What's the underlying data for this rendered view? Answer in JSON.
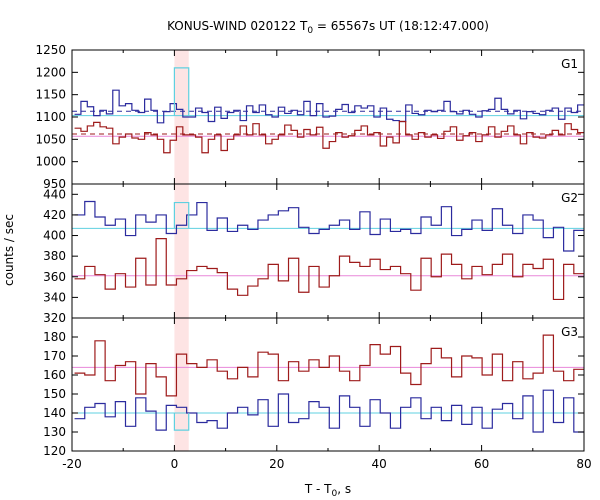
{
  "chart_data": {
    "type": "line",
    "title_main": "KONUS-WIND 020122 T",
    "title_sub": "0",
    "title_rest": " = 65567s UT (18:12:47.000)",
    "xlabel_main": "T - T",
    "xlabel_sub": "0",
    "xlabel_rest": ", s",
    "ylabel": "counts / sec",
    "xlim": [
      -20,
      80
    ],
    "xticks": [
      "-20",
      "0",
      "20",
      "40",
      "60",
      "80"
    ],
    "highlight_band": [
      0,
      2.8
    ],
    "colors": {
      "blue": "#2b2b9e",
      "red": "#9e1b1b",
      "cyan": "#5fd0e0",
      "pink": "#e887d9",
      "band": "#fde4e4"
    },
    "panels": [
      {
        "label": "G1",
        "ylim": [
          950,
          1250
        ],
        "yticks": [
          "950",
          "1000",
          "1050",
          "1100",
          "1150",
          "1200",
          "1250"
        ],
        "series": [
          {
            "color": "blue",
            "values": [
              1106,
              1135,
              1123,
              1103,
              1115,
              1107,
              1160,
              1125,
              1130,
              1115,
              1110,
              1140,
              1115,
              1087,
              1112,
              1130,
              1117,
              1100,
              1100,
              1120,
              1110,
              1090,
              1122,
              1097,
              1110,
              1115,
              1092,
              1125,
              1110,
              1127,
              1105,
              1100,
              1122,
              1108,
              1115,
              1105,
              1135,
              1103,
              1130,
              1100,
              1102,
              1117,
              1128,
              1110,
              1125,
              1120,
              1125,
              1100,
              1120,
              1095,
              1092,
              1090,
              1127,
              1108,
              1105,
              1115,
              1112,
              1115,
              1135,
              1112,
              1107,
              1115,
              1106,
              1100,
              1114,
              1117,
              1142,
              1117,
              1107,
              1115,
              1096,
              1112,
              1108,
              1105,
              1115,
              1120,
              1095,
              1120,
              1110,
              1127
            ]
          },
          {
            "color": "red",
            "values": [
              1075,
              1068,
              1080,
              1088,
              1078,
              1075,
              1040,
              1055,
              1062,
              1053,
              1050,
              1065,
              1060,
              1050,
              1020,
              1048,
              1078,
              1060,
              1060,
              1055,
              1020,
              1050,
              1060,
              1025,
              1050,
              1060,
              1080,
              1060,
              1085,
              1060,
              1040,
              1050,
              1060,
              1082,
              1070,
              1055,
              1072,
              1060,
              1077,
              1030,
              1045,
              1065,
              1055,
              1058,
              1070,
              1080,
              1060,
              1065,
              1035,
              1055,
              1042,
              1090,
              1060,
              1050,
              1065,
              1055,
              1060,
              1052,
              1068,
              1078,
              1048,
              1058,
              1065,
              1045,
              1060,
              1078,
              1055,
              1068,
              1080,
              1060,
              1040,
              1065,
              1055,
              1053,
              1060,
              1070,
              1060,
              1085,
              1072,
              1065
            ]
          },
          {
            "color": "cyan",
            "values": [
              1210,
              1210,
              1210
            ]
          }
        ],
        "ref_lines": [
          {
            "color": "blue",
            "y": 1113,
            "dash": true
          },
          {
            "color": "red",
            "y": 1062,
            "dash": true
          },
          {
            "color": "cyan",
            "y": 1103,
            "dash": false
          },
          {
            "color": "pink",
            "y": 1057,
            "dash": false
          }
        ]
      },
      {
        "label": "G2",
        "ylim": [
          320,
          450
        ],
        "yticks": [
          "320",
          "340",
          "360",
          "380",
          "400",
          "420",
          "440"
        ],
        "series": [
          {
            "color": "blue",
            "values": [
              420,
              433,
              418,
              410,
              416,
              400,
              420,
              413,
              420,
              402,
              410,
              420,
              432,
              405,
              417,
              404,
              410,
              406,
              415,
              420,
              424,
              427,
              408,
              402,
              406,
              410,
              415,
              406,
              423,
              401,
              416,
              404,
              406,
              402,
              418,
              410,
              428,
              400,
              406,
              415,
              405,
              426,
              410,
              402,
              420,
              415,
              398,
              408,
              385,
              405
            ]
          },
          {
            "color": "red",
            "values": [
              358,
              370,
              362,
              348,
              363,
              350,
              378,
              352,
              397,
              352,
              358,
              366,
              370,
              368,
              364,
              348,
              342,
              351,
              358,
              372,
              356,
              378,
              345,
              370,
              350,
              361,
              380,
              374,
              370,
              377,
              367,
              370,
              363,
              347,
              378,
              360,
              382,
              372,
              358,
              370,
              362,
              372,
              382,
              360,
              372,
              368,
              377,
              338,
              372,
              363
            ]
          },
          {
            "color": "cyan",
            "values": [
              432,
              432,
              432
            ]
          }
        ],
        "ref_lines": [
          {
            "color": "cyan",
            "y": 407,
            "dash": false
          },
          {
            "color": "pink",
            "y": 361,
            "dash": false
          }
        ]
      },
      {
        "label": "G3",
        "ylim": [
          120,
          190
        ],
        "yticks": [
          "120",
          "130",
          "140",
          "150",
          "160",
          "170",
          "180"
        ],
        "series": [
          {
            "color": "blue",
            "values": [
              137,
              143,
              145,
              138,
              146,
              133,
              148,
              141,
              131,
              144,
              143,
              140,
              135,
              136,
              132,
              140,
              143,
              139,
              147,
              133,
              150,
              135,
              137,
              146,
              143,
              132,
              149,
              143,
              133,
              147,
              140,
              132,
              143,
              148,
              137,
              143,
              136,
              144,
              134,
              143,
              132,
              142,
              145,
              137,
              149,
              130,
              152,
              135,
              148,
              130
            ]
          },
          {
            "color": "red",
            "values": [
              161,
              160,
              178,
              157,
              165,
              167,
              150,
              166,
              159,
              149,
              171,
              166,
              164,
              168,
              162,
              158,
              164,
              159,
              172,
              171,
              157,
              167,
              162,
              168,
              164,
              170,
              162,
              157,
              165,
              176,
              171,
              175,
              161,
              155,
              166,
              174,
              169,
              159,
              170,
              169,
              160,
              171,
              157,
              167,
              158,
              161,
              181,
              162,
              157,
              163
            ]
          },
          {
            "color": "cyan",
            "values": [
              131,
              131,
              131
            ]
          }
        ],
        "ref_lines": [
          {
            "color": "cyan",
            "y": 140,
            "dash": false
          },
          {
            "color": "pink",
            "y": 164,
            "dash": false
          }
        ]
      }
    ]
  }
}
